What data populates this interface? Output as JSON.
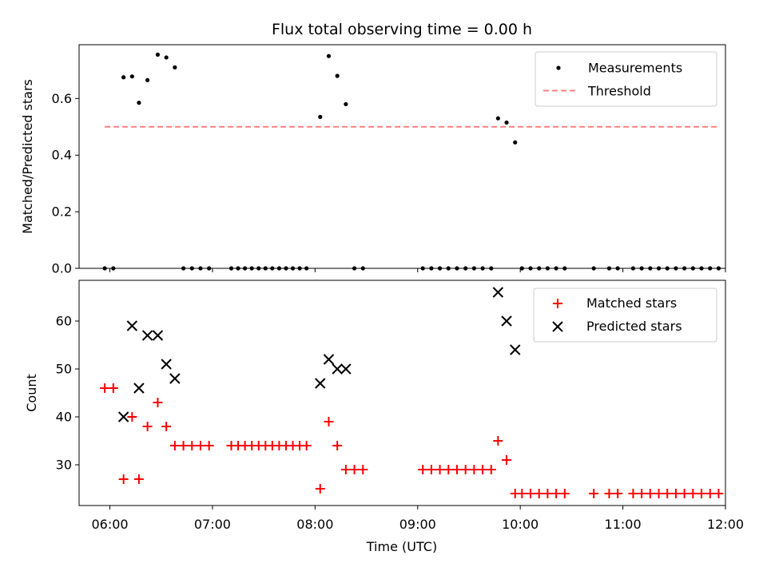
{
  "chart_data": [
    {
      "type": "scatter",
      "title": "Flux total observing time = 0.00 h",
      "ylabel": "Matched/Predicted stars",
      "xlim": [
        "05:42",
        "12:00"
      ],
      "ylim": [
        0,
        0.79
      ],
      "yticks": [
        0.0,
        0.2,
        0.4,
        0.6
      ],
      "ytick_labels": [
        "0.0",
        "0.2",
        "0.4",
        "0.6"
      ],
      "legend_position": "upper right",
      "series": [
        {
          "name": "Measurements",
          "marker": "dot",
          "color": "#000000",
          "points": [
            [
              "05:57",
              0.0
            ],
            [
              "06:02",
              0.0
            ],
            [
              "06:08",
              0.675
            ],
            [
              "06:13",
              0.678
            ],
            [
              "06:17",
              0.585
            ],
            [
              "06:22",
              0.665
            ],
            [
              "06:28",
              0.755
            ],
            [
              "06:33",
              0.745
            ],
            [
              "06:38",
              0.71
            ],
            [
              "06:43",
              0.0
            ],
            [
              "06:48",
              0.0
            ],
            [
              "06:53",
              0.0
            ],
            [
              "06:58",
              0.0
            ],
            [
              "07:11",
              0.0
            ],
            [
              "07:15",
              0.0
            ],
            [
              "07:19",
              0.0
            ],
            [
              "07:23",
              0.0
            ],
            [
              "07:27",
              0.0
            ],
            [
              "07:31",
              0.0
            ],
            [
              "07:35",
              0.0
            ],
            [
              "07:39",
              0.0
            ],
            [
              "07:43",
              0.0
            ],
            [
              "07:47",
              0.0
            ],
            [
              "07:51",
              0.0
            ],
            [
              "07:55",
              0.0
            ],
            [
              "08:03",
              0.535
            ],
            [
              "08:08",
              0.75
            ],
            [
              "08:13",
              0.68
            ],
            [
              "08:18",
              0.58
            ],
            [
              "08:23",
              0.0
            ],
            [
              "08:28",
              0.0
            ],
            [
              "09:03",
              0.0
            ],
            [
              "09:08",
              0.0
            ],
            [
              "09:13",
              0.0
            ],
            [
              "09:18",
              0.0
            ],
            [
              "09:23",
              0.0
            ],
            [
              "09:28",
              0.0
            ],
            [
              "09:33",
              0.0
            ],
            [
              "09:38",
              0.0
            ],
            [
              "09:43",
              0.0
            ],
            [
              "09:47",
              0.53
            ],
            [
              "09:52",
              0.515
            ],
            [
              "09:57",
              0.445
            ],
            [
              "10:01",
              0.0
            ],
            [
              "10:06",
              0.0
            ],
            [
              "10:11",
              0.0
            ],
            [
              "10:16",
              0.0
            ],
            [
              "10:21",
              0.0
            ],
            [
              "10:26",
              0.0
            ],
            [
              "10:43",
              0.0
            ],
            [
              "10:52",
              0.0
            ],
            [
              "10:57",
              0.0
            ],
            [
              "11:06",
              0.0
            ],
            [
              "11:11",
              0.0
            ],
            [
              "11:16",
              0.0
            ],
            [
              "11:21",
              0.0
            ],
            [
              "11:26",
              0.0
            ],
            [
              "11:31",
              0.0
            ],
            [
              "11:36",
              0.0
            ],
            [
              "11:41",
              0.0
            ],
            [
              "11:46",
              0.0
            ],
            [
              "11:51",
              0.0
            ],
            [
              "11:56",
              0.0
            ]
          ]
        },
        {
          "name": "Threshold",
          "style": "dashed",
          "color": "#ff7f7f",
          "points": [
            [
              "05:57",
              0.5
            ],
            [
              "11:56",
              0.5
            ]
          ]
        }
      ]
    },
    {
      "type": "scatter",
      "xlabel": "Time (UTC)",
      "ylabel": "Count",
      "xlim": [
        "05:42",
        "12:00"
      ],
      "ylim": [
        21.5,
        68.5
      ],
      "xticks": [
        "06:00",
        "07:00",
        "08:00",
        "09:00",
        "10:00",
        "11:00",
        "12:00"
      ],
      "yticks": [
        30,
        40,
        50,
        60
      ],
      "ytick_labels": [
        "30",
        "40",
        "50",
        "60"
      ],
      "legend_position": "upper right",
      "series": [
        {
          "name": "Matched stars",
          "marker": "plus",
          "color": "#ff0000",
          "points": [
            [
              "05:57",
              46
            ],
            [
              "06:02",
              46
            ],
            [
              "06:08",
              27
            ],
            [
              "06:13",
              40
            ],
            [
              "06:17",
              27
            ],
            [
              "06:22",
              38
            ],
            [
              "06:28",
              43
            ],
            [
              "06:33",
              38
            ],
            [
              "06:38",
              34
            ],
            [
              "06:43",
              34
            ],
            [
              "06:48",
              34
            ],
            [
              "06:53",
              34
            ],
            [
              "06:58",
              34
            ],
            [
              "07:11",
              34
            ],
            [
              "07:15",
              34
            ],
            [
              "07:19",
              34
            ],
            [
              "07:23",
              34
            ],
            [
              "07:27",
              34
            ],
            [
              "07:31",
              34
            ],
            [
              "07:35",
              34
            ],
            [
              "07:39",
              34
            ],
            [
              "07:43",
              34
            ],
            [
              "07:47",
              34
            ],
            [
              "07:51",
              34
            ],
            [
              "07:55",
              34
            ],
            [
              "08:03",
              25
            ],
            [
              "08:08",
              39
            ],
            [
              "08:13",
              34
            ],
            [
              "08:18",
              29
            ],
            [
              "08:23",
              29
            ],
            [
              "08:28",
              29
            ],
            [
              "09:03",
              29
            ],
            [
              "09:08",
              29
            ],
            [
              "09:13",
              29
            ],
            [
              "09:18",
              29
            ],
            [
              "09:23",
              29
            ],
            [
              "09:28",
              29
            ],
            [
              "09:33",
              29
            ],
            [
              "09:38",
              29
            ],
            [
              "09:43",
              29
            ],
            [
              "09:47",
              35
            ],
            [
              "09:52",
              31
            ],
            [
              "09:57",
              24
            ],
            [
              "10:01",
              24
            ],
            [
              "10:06",
              24
            ],
            [
              "10:11",
              24
            ],
            [
              "10:16",
              24
            ],
            [
              "10:21",
              24
            ],
            [
              "10:26",
              24
            ],
            [
              "10:43",
              24
            ],
            [
              "10:52",
              24
            ],
            [
              "10:57",
              24
            ],
            [
              "11:06",
              24
            ],
            [
              "11:11",
              24
            ],
            [
              "11:16",
              24
            ],
            [
              "11:21",
              24
            ],
            [
              "11:26",
              24
            ],
            [
              "11:31",
              24
            ],
            [
              "11:36",
              24
            ],
            [
              "11:41",
              24
            ],
            [
              "11:46",
              24
            ],
            [
              "11:51",
              24
            ],
            [
              "11:56",
              24
            ]
          ]
        },
        {
          "name": "Predicted stars",
          "marker": "x",
          "color": "#000000",
          "points": [
            [
              "06:08",
              40
            ],
            [
              "06:13",
              59
            ],
            [
              "06:17",
              46
            ],
            [
              "06:22",
              57
            ],
            [
              "06:28",
              57
            ],
            [
              "06:33",
              51
            ],
            [
              "06:38",
              48
            ],
            [
              "08:03",
              47
            ],
            [
              "08:08",
              52
            ],
            [
              "08:13",
              50
            ],
            [
              "08:18",
              50
            ],
            [
              "09:47",
              66
            ],
            [
              "09:52",
              60
            ],
            [
              "09:57",
              54
            ]
          ]
        }
      ]
    }
  ]
}
